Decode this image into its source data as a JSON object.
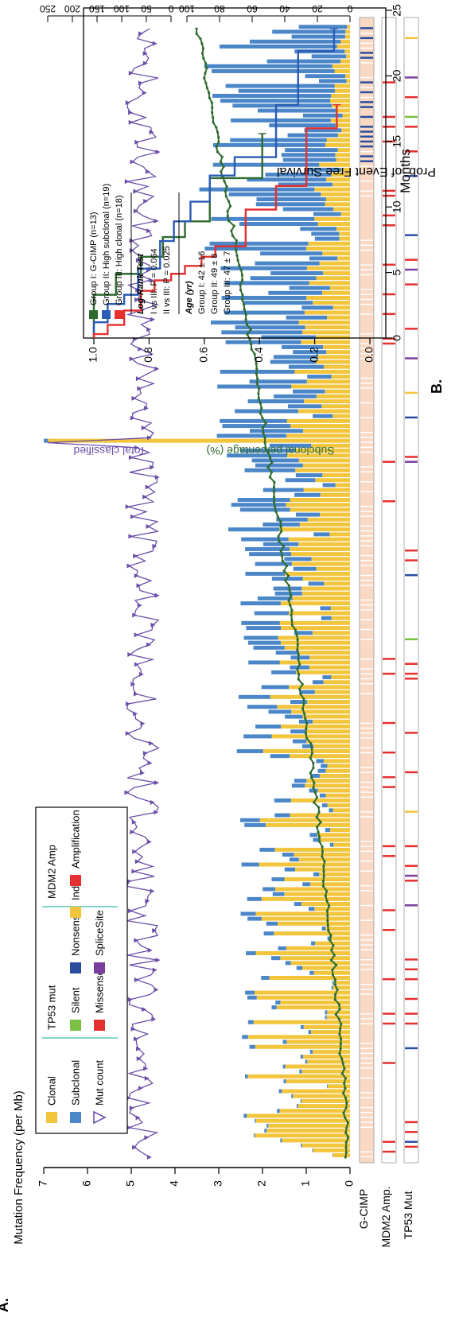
{
  "panel_a": {
    "label": "A.",
    "ylabel": "Mutation Frequency (per Mb)",
    "yticks": [
      "0",
      "1",
      "2",
      "3",
      "4",
      "5",
      "6",
      "7"
    ],
    "right_total_label": "Total classified",
    "right_total_ticks": [
      "0",
      "50",
      "100",
      "150",
      "200",
      "250"
    ],
    "right_subclonal_label": "Subclonal percentage (%)",
    "right_subclonal_ticks": [
      "0",
      "20",
      "40",
      "60",
      "80",
      "100"
    ],
    "track_labels": [
      "G-CIMP",
      "MDM2 Amp.",
      "TP53 Mut"
    ],
    "legend": {
      "col1": [
        "Clonal",
        "Subclonal",
        "Mut count"
      ],
      "col2_title": "TP53 mut",
      "col2": [
        "Silent",
        "Missense",
        "Nonsense",
        "SpliceSite",
        "Indel"
      ],
      "col3_title": "MDM2 Amp",
      "col3": [
        "Amplification"
      ]
    },
    "colors": {
      "clonal": "#f2c53d",
      "subclonal": "#4a86c8",
      "mutcount": "#6b4fa8",
      "subclonal_pct": "#2e6b2e",
      "gcimp": "#2a4da0",
      "gcimp_bg": "#f9d9c4",
      "missense": "#e53030",
      "silent": "#79c043",
      "nonsense": "#2a4da0",
      "splice": "#7b3fa0",
      "indel": "#f2c53d",
      "amp": "#e53030"
    }
  },
  "chart_data": [
    {
      "type": "bar",
      "title": "",
      "xlabel": "",
      "ylabel": "Mutation Frequency (per Mb)",
      "ylim": [
        0,
        7
      ],
      "n_samples": 230,
      "series": [
        {
          "name": "Clonal",
          "values": [
            2.1,
            0.5,
            1.8,
            2.2,
            0.6,
            0.8
          ]
        },
        {
          "name": "Subclonal",
          "values": [
            0.1,
            0.2,
            0.3,
            0.5,
            2.2,
            1.1
          ]
        },
        {
          "name": "Mut count",
          "values": [
            2.3,
            4.8,
            5.0,
            5.1,
            4.6,
            4.4
          ]
        }
      ],
      "notes": [
        "Subclonal percentage rises from 0 to 100%",
        "single outlier sample reaches ~7 per Mb"
      ]
    },
    {
      "type": "line",
      "title": "",
      "xlabel": "Months",
      "ylabel": "Prob. of Event Free Survival",
      "xlim": [
        0,
        25
      ],
      "ylim": [
        0.0,
        1.0
      ],
      "xticks": [
        "0",
        "5",
        "10",
        "15",
        "20",
        "25"
      ],
      "yticks": [
        "0.0",
        "0.2",
        "0.4",
        "0.6",
        "0.8",
        "1.0"
      ],
      "series": [
        {
          "name": "Group I: G-CIMP (n=13)",
          "color": "#2e6b2e",
          "x": [
            0,
            3.3,
            4.9,
            6.2,
            7.7,
            8.9,
            12.2,
            15.6
          ],
          "y": [
            1.0,
            0.92,
            0.83,
            0.75,
            0.67,
            0.58,
            0.39,
            0.39
          ]
        },
        {
          "name": "Group II: High subclonal (n=19)",
          "color": "#2a5bb5",
          "x": [
            0,
            1.2,
            2.6,
            3.3,
            5.3,
            7.4,
            8.9,
            10.4,
            12.4,
            13.8,
            17.8,
            21.9,
            23.6
          ],
          "y": [
            1.0,
            0.95,
            0.89,
            0.84,
            0.76,
            0.71,
            0.65,
            0.58,
            0.49,
            0.34,
            0.26,
            0.13,
            0.13
          ]
        },
        {
          "name": "Group III: High clonal (n=18)",
          "color": "#e53030",
          "x": [
            0,
            0.3,
            1.0,
            2.1,
            3.6,
            4.4,
            4.9,
            5.5,
            6.2,
            7.0,
            9.8,
            11.6,
            16.0,
            17.8
          ],
          "y": [
            1.0,
            0.95,
            0.89,
            0.83,
            0.78,
            0.72,
            0.67,
            0.61,
            0.56,
            0.45,
            0.34,
            0.23,
            0.12,
            0.12
          ]
        }
      ],
      "legend": {
        "entries": [
          "Group I: G-CIMP (n=13)",
          "Group II: High subclonal (n=19)",
          "Group III: High clonal (n=18)"
        ],
        "logrank_title": "Log-Rank Test",
        "logrank": [
          "I vs III: P = 0.064",
          "II vs III: P = 0.025"
        ],
        "age_title": "Age (yr)",
        "age": [
          "Group I: 42 ± 16",
          "Group II: 49 ± 8",
          "Group III: 47 ± 7"
        ]
      }
    }
  ],
  "panel_b": {
    "label": "B.",
    "xlabel": "Months",
    "ylabel": "Prob. of Event Free Survival"
  }
}
